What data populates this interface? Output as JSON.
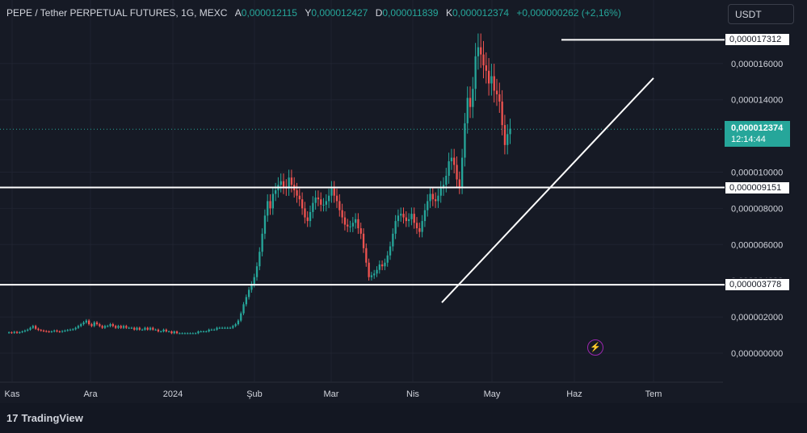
{
  "header": {
    "symbol_title": "PEPE / Tether PERPETUAL FUTURES, 1G, MEXC",
    "ohlc": [
      {
        "key": "A",
        "value": "0,000012115"
      },
      {
        "key": "Y",
        "value": "0,000012427"
      },
      {
        "key": "D",
        "value": "0,000011839"
      },
      {
        "key": "K",
        "value": "0,000012374"
      }
    ],
    "change": "+0,000000262 (+2,16%)"
  },
  "currency": "USDT",
  "brand": "TradingView",
  "colors": {
    "up": "#26a69a",
    "down": "#ef5350",
    "background": "#161a25",
    "grid": "#1f2330",
    "lines": "#ffffff"
  },
  "chart_data": {
    "type": "candlestick",
    "x_ticks": [
      "Kas",
      "Ara",
      "2024",
      "Şub",
      "Mar",
      "Nis",
      "May",
      "Haz",
      "Tem"
    ],
    "y_ticks": [
      "0,000000000",
      "0,000002000",
      "0,000004000",
      "0,000006000",
      "0,000008000",
      "0,000010000",
      "0,000014000",
      "0,000016000"
    ],
    "ylim": [
      0,
      1.85e-05
    ],
    "horizontal_levels": [
      "0,000017312",
      "0,000009151",
      "0,000003778"
    ],
    "hidden_tick_label": "0,000004000",
    "current_price": "0,000012374",
    "countdown": "12:14:44",
    "trend_line": {
      "start": [
        "2024-04-12",
        2.8e-06
      ],
      "end": [
        "2024-07-01",
        1.52e-05
      ]
    },
    "series_close": [
      1.15e-06,
      1.12e-06,
      1.18e-06,
      1.12e-06,
      1.16e-06,
      1.2e-06,
      1.25e-06,
      1.3e-06,
      1.4e-06,
      1.5e-06,
      1.35e-06,
      1.28e-06,
      1.25e-06,
      1.22e-06,
      1.2e-06,
      1.18e-06,
      1.2e-06,
      1.25e-06,
      1.2e-06,
      1.18e-06,
      1.22e-06,
      1.25e-06,
      1.28e-06,
      1.3e-06,
      1.32e-06,
      1.4e-06,
      1.5e-06,
      1.6e-06,
      1.7e-06,
      1.8e-06,
      1.6e-06,
      1.5e-06,
      1.7e-06,
      1.6e-06,
      1.5e-06,
      1.4e-06,
      1.5e-06,
      1.5e-06,
      1.6e-06,
      1.5e-06,
      1.4e-06,
      1.5e-06,
      1.4e-06,
      1.5e-06,
      1.4e-06,
      1.4e-06,
      1.4e-06,
      1.3e-06,
      1.4e-06,
      1.3e-06,
      1.3e-06,
      1.4e-06,
      1.3e-06,
      1.4e-06,
      1.3e-06,
      1.3e-06,
      1.2e-06,
      1.2e-06,
      1.3e-06,
      1.2e-06,
      1.2e-06,
      1.1e-06,
      1.2e-06,
      1.1e-06,
      1.1e-06,
      1.1e-06,
      1.1e-06,
      1.1e-06,
      1.1e-06,
      1.1e-06,
      1.1e-06,
      1.2e-06,
      1.2e-06,
      1.2e-06,
      1.2e-06,
      1.3e-06,
      1.3e-06,
      1.3e-06,
      1.4e-06,
      1.4e-06,
      1.4e-06,
      1.4e-06,
      1.4e-06,
      1.4e-06,
      1.5e-06,
      1.6e-06,
      1.8e-06,
      2.2e-06,
      2.7e-06,
      3.1e-06,
      3.5e-06,
      3.8e-06,
      4.2e-06,
      4.8e-06,
      5.6e-06,
      6.6e-06,
      7.6e-06,
      8.4e-06,
      8e-06,
      8.8e-06,
      9e-06,
      9.3e-06,
      9.5e-06,
      9.2e-06,
      9.1e-06,
      9.7e-06,
      9.3e-06,
      9e-06,
      8.7e-06,
      8.5e-06,
      8e-06,
      7.5e-06,
      7.3e-06,
      7.8e-06,
      8.3e-06,
      8.6e-06,
      8.5e-06,
      8.2e-06,
      8.2e-06,
      8.4e-06,
      8.7e-06,
      9.1e-06,
      8.7e-06,
      8.4e-06,
      7.9e-06,
      7.5e-06,
      7.1e-06,
      7e-06,
      7e-06,
      7.2e-06,
      7.4e-06,
      6.9e-06,
      6.6e-06,
      5.8e-06,
      5e-06,
      4.2e-06,
      4.3e-06,
      4.4e-06,
      4.6e-06,
      4.9e-06,
      4.8e-06,
      5e-06,
      5.4e-06,
      5.9e-06,
      6.6e-06,
      7.3e-06,
      7.6e-06,
      7.7e-06,
      7.5e-06,
      7.3e-06,
      7.4e-06,
      7.7e-06,
      7.2e-06,
      6.9e-06,
      6.7e-06,
      7.3e-06,
      7.9e-06,
      8.4e-06,
      8.8e-06,
      8.5e-06,
      8.4e-06,
      8.7e-06,
      9.1e-06,
      9.3e-06,
      9.8e-06,
      1.06e-05,
      1.08e-05,
      1.04e-05,
      9.6e-06,
      9.2e-06,
      1.08e-05,
      1.27e-05,
      1.41e-05,
      1.36e-05,
      1.46e-05,
      1.64e-05,
      1.69e-05,
      1.65e-05,
      1.59e-05,
      1.56e-05,
      1.49e-05,
      1.53e-05,
      1.45e-05,
      1.43e-05,
      1.39e-05,
      1.26e-05,
      1.15e-05,
      1.21e-05,
      1.24e-05
    ]
  }
}
